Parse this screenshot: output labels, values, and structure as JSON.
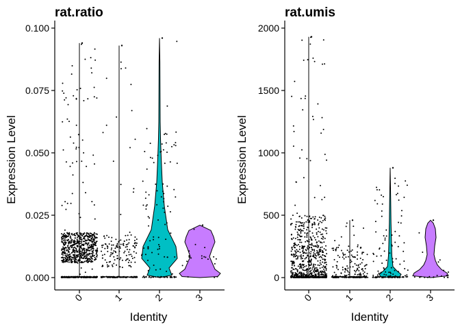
{
  "chart_data": [
    {
      "type": "violin",
      "title": "rat.ratio",
      "xlabel": "Identity",
      "ylabel": "Expression Level",
      "categories": [
        "0",
        "1",
        "2",
        "3"
      ],
      "ylim": [
        0,
        0.1
      ],
      "yticks": [
        0.0,
        0.025,
        0.05,
        0.075,
        0.1
      ],
      "ytick_labels": [
        "0.000",
        "0.025",
        "0.050",
        "0.075",
        "0.100"
      ],
      "groups": [
        {
          "name": "0",
          "color": "#F8766D",
          "max": 0.094,
          "bulk_median": 0.012,
          "bulk_range": [
            0.006,
            0.018
          ],
          "zero_fraction": 0.25
        },
        {
          "name": "1",
          "color": "#7CAE00",
          "max": 0.093,
          "bulk_median": 0.012,
          "bulk_range": [
            0.004,
            0.017
          ],
          "zero_fraction": 0.5
        },
        {
          "name": "2",
          "color": "#00BFC4",
          "max": 0.096,
          "bulk_median": 0.01,
          "bulk_range": [
            0.0,
            0.06
          ],
          "zero_fraction": 0.3
        },
        {
          "name": "3",
          "color": "#C77CFF",
          "max": 0.021,
          "bulk_median": 0.008,
          "bulk_range": [
            0.0,
            0.021
          ],
          "zero_fraction": 0.3
        }
      ],
      "grid": false,
      "legend": "none"
    },
    {
      "type": "violin",
      "title": "rat.umis",
      "xlabel": "Identity",
      "ylabel": "Expression Level",
      "categories": [
        "0",
        "1",
        "2",
        "3"
      ],
      "ylim": [
        0,
        2000
      ],
      "yticks": [
        0,
        500,
        1000,
        1500,
        2000
      ],
      "ytick_labels": [
        "0",
        "500",
        "1000",
        "1500",
        "2000"
      ],
      "groups": [
        {
          "name": "0",
          "color": "#F8766D",
          "max": 1930,
          "bulk_median": 60,
          "bulk_range": [
            0,
            500
          ],
          "zero_fraction": 0.2
        },
        {
          "name": "1",
          "color": "#7CAE00",
          "max": 460,
          "bulk_median": 40,
          "bulk_range": [
            0,
            250
          ],
          "zero_fraction": 0.4
        },
        {
          "name": "2",
          "color": "#00BFC4",
          "max": 880,
          "bulk_median": 20,
          "bulk_range": [
            0,
            800
          ],
          "zero_fraction": 0.4
        },
        {
          "name": "3",
          "color": "#C77CFF",
          "max": 460,
          "bulk_median": 50,
          "bulk_range": [
            0,
            460
          ],
          "zero_fraction": 0.4
        }
      ],
      "grid": false,
      "legend": "none"
    }
  ]
}
